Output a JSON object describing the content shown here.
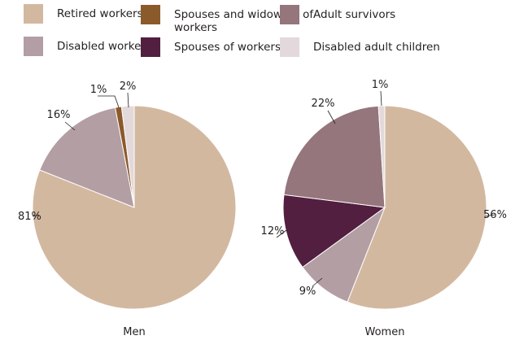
{
  "legend": [
    {
      "key": "retired",
      "label": "Retired workers",
      "color": "#d3b8a0"
    },
    {
      "key": "disabled",
      "label": "Disabled workers",
      "color": "#b39ea3"
    },
    {
      "key": "spouses_widowers",
      "label": "Spouses and widowers of workers",
      "color": "#8b5a2b"
    },
    {
      "key": "spouses",
      "label": "Spouses of workers",
      "color": "#521f40"
    },
    {
      "key": "survivors",
      "label": "Adult survivors",
      "color": "#94767c"
    },
    {
      "key": "dac",
      "label": "Disabled adult children",
      "color": "#e3d8da"
    }
  ],
  "chart_data": [
    {
      "type": "pie",
      "title": "Men",
      "slices": [
        {
          "key": "retired",
          "value": 81,
          "label": "81%"
        },
        {
          "key": "disabled",
          "value": 16,
          "label": "16%"
        },
        {
          "key": "spouses_widowers",
          "value": 1,
          "label": "1%"
        },
        {
          "key": "dac",
          "value": 2,
          "label": "2%"
        }
      ]
    },
    {
      "type": "pie",
      "title": "Women",
      "slices": [
        {
          "key": "retired",
          "value": 56,
          "label": "56%"
        },
        {
          "key": "disabled",
          "value": 9,
          "label": "9%"
        },
        {
          "key": "spouses",
          "value": 12,
          "label": "12%"
        },
        {
          "key": "survivors",
          "value": 22,
          "label": "22%"
        },
        {
          "key": "dac",
          "value": 1,
          "label": "1%"
        }
      ]
    }
  ]
}
